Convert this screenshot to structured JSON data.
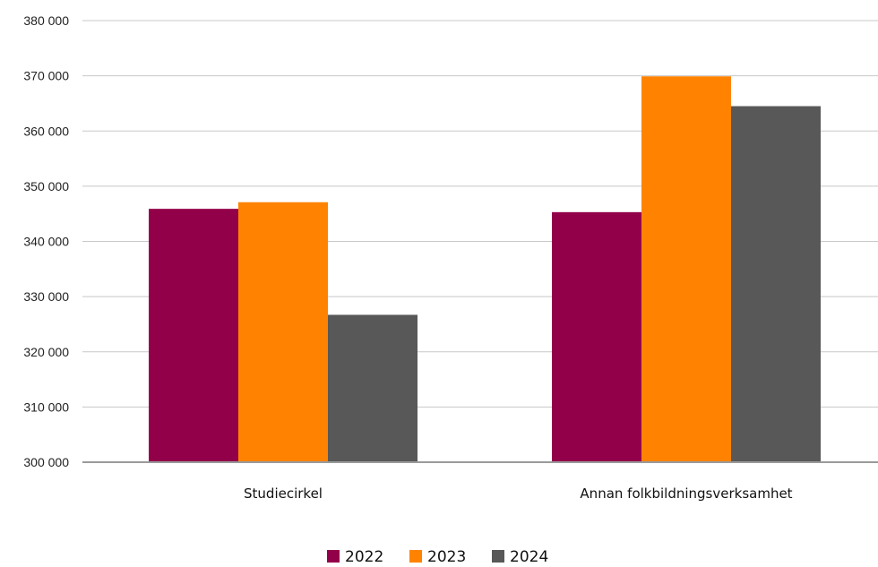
{
  "chart_data": {
    "type": "bar",
    "title": "",
    "xlabel": "",
    "ylabel": "",
    "categories": [
      "Studiecirkel",
      "Annan folkbildningsverksamhet"
    ],
    "series": [
      {
        "name": "2022",
        "color": "#93004a",
        "values": [
          345900,
          345300
        ]
      },
      {
        "name": "2023",
        "color": "#ff8300",
        "values": [
          347100,
          369900
        ]
      },
      {
        "name": "2024",
        "color": "#585858",
        "values": [
          326700,
          364500
        ]
      }
    ],
    "ylim": [
      300000,
      380000
    ],
    "yticks": [
      300000,
      310000,
      320000,
      330000,
      340000,
      350000,
      360000,
      370000,
      380000
    ],
    "ytick_labels": [
      "300 000",
      "310 000",
      "320 000",
      "330 000",
      "340 000",
      "350 000",
      "360 000",
      "370 000",
      "380 000"
    ],
    "grid": true,
    "legend_position": "bottom"
  }
}
